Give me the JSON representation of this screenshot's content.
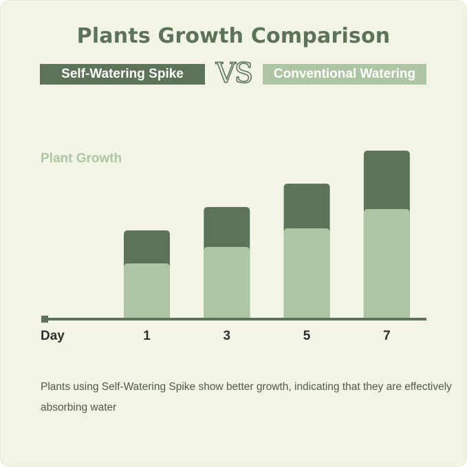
{
  "title": "Plants Growth Comparison",
  "legend": {
    "self_label": "Self-Watering Spike",
    "vs_label": "VS",
    "conv_label": "Conventional Watering"
  },
  "caption": "Plants using Self-Watering Spike show better growth, indicating that they are effectively absorbing water",
  "colors": {
    "background": "#f2f4e6",
    "self_watering": "#5c7358",
    "conventional": "#adc5a3",
    "axis": "#5c7358",
    "text_dark": "#4d5a49"
  },
  "chart_data": {
    "type": "bar",
    "title": "Plants Growth Comparison",
    "xlabel": "Day",
    "ylabel": "Plant Growth",
    "categories": [
      "1",
      "3",
      "5",
      "7"
    ],
    "series": [
      {
        "name": "Self-Watering Spike",
        "values": [
          128,
          162,
          196,
          244
        ]
      },
      {
        "name": "Conventional Watering",
        "values": [
          80,
          104,
          131,
          159
        ]
      }
    ],
    "ylim": [
      0,
      260
    ],
    "overlay": true,
    "grid": false,
    "legend_position": "top"
  }
}
